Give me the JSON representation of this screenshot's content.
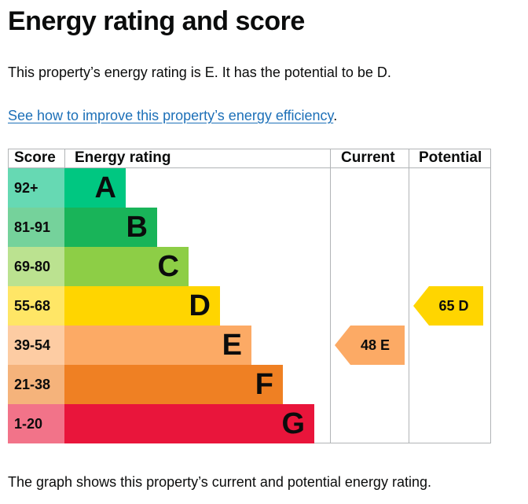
{
  "page": {
    "title": "Energy rating and score",
    "intro": "This property’s energy rating is E. It has the potential to be D.",
    "improve_link": "See how to improve this property’s energy efficiency",
    "improve_link_suffix": ".",
    "footnote": "The graph shows this property’s current and potential energy rating."
  },
  "table": {
    "headers": {
      "score": "Score",
      "rating": "Energy rating",
      "current": "Current",
      "potential": "Potential"
    },
    "bands": [
      {
        "score": "92+",
        "letter": "A",
        "color": "#00c781",
        "score_bg": "#66d9b3"
      },
      {
        "score": "81-91",
        "letter": "B",
        "color": "#19b459",
        "score_bg": "#75d29b"
      },
      {
        "score": "69-80",
        "letter": "C",
        "color": "#8dce46",
        "score_bg": "#bbe290"
      },
      {
        "score": "55-68",
        "letter": "D",
        "color": "#ffd500",
        "score_bg": "#ffe666"
      },
      {
        "score": "39-54",
        "letter": "E",
        "color": "#fcaa65",
        "score_bg": "#fdcca3"
      },
      {
        "score": "21-38",
        "letter": "F",
        "color": "#ef8023",
        "score_bg": "#f5b37b"
      },
      {
        "score": "1-20",
        "letter": "G",
        "color": "#e9153b",
        "score_bg": "#f27389"
      }
    ],
    "current": {
      "label": "48 E",
      "band": "E",
      "color": "#fcaa65"
    },
    "potential": {
      "label": "65 D",
      "band": "D",
      "color": "#ffd500"
    }
  }
}
